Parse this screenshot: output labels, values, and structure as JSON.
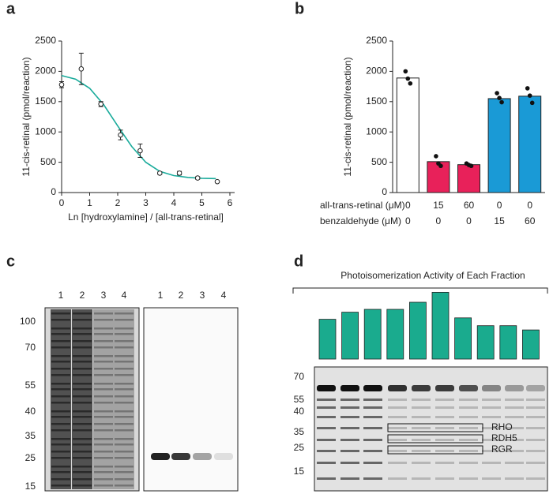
{
  "chart_data": [
    {
      "type": "scatter",
      "panel": "a",
      "y_label": "11-cis-retinal (pmol/reaction)",
      "x_label": "Ln [hydroxylamine] / [all-trans-retinal]",
      "x": [
        0,
        0.7,
        1.4,
        2.1,
        2.8,
        3.5,
        4.2,
        4.85,
        5.55
      ],
      "values": [
        1780,
        2040,
        1460,
        950,
        690,
        320,
        320,
        240,
        180
      ],
      "errors": [
        50,
        260,
        40,
        80,
        110,
        20,
        30,
        20,
        15
      ],
      "fit": {
        "color": "#1aab9b",
        "x": [
          0,
          0.5,
          1,
          1.5,
          2,
          2.5,
          3,
          3.5,
          4,
          4.5,
          5,
          5.5
        ],
        "values": [
          1930,
          1870,
          1720,
          1450,
          1100,
          760,
          500,
          350,
          280,
          250,
          235,
          230
        ]
      },
      "xlim": [
        0,
        6
      ],
      "xticks": [
        0,
        1,
        2,
        3,
        4,
        5,
        6
      ],
      "ylim": [
        0,
        2500
      ],
      "yticks": [
        0,
        500,
        1000,
        1500,
        2000,
        2500
      ]
    },
    {
      "type": "bar",
      "panel": "b",
      "y_label": "11-cis-retinal (pmol/reaction)",
      "rows": [
        {
          "label": "all-trans-retinal (μM)",
          "values": [
            0,
            15,
            60,
            0,
            0
          ]
        },
        {
          "label": "benzaldehyde (μM)",
          "values": [
            0,
            0,
            0,
            15,
            60
          ]
        }
      ],
      "values": [
        1890,
        510,
        460,
        1550,
        1590
      ],
      "colors": [
        "#ffffff",
        "#e8215a",
        "#e8215a",
        "#1a9ad6",
        "#1a9ad6"
      ],
      "points": [
        [
          2000,
          1880,
          1800
        ],
        [
          600,
          480,
          440
        ],
        [
          480,
          455,
          440
        ],
        [
          1640,
          1560,
          1490
        ],
        [
          1720,
          1600,
          1480
        ]
      ],
      "ylim": [
        0,
        2500
      ],
      "yticks": [
        0,
        500,
        1000,
        1500,
        2000,
        2500
      ]
    },
    {
      "type": "bar",
      "panel": "d",
      "title": "Photoisomerization Activity of Each Fraction",
      "values": [
        0.56,
        0.66,
        0.7,
        0.7,
        0.8,
        0.94,
        0.58,
        0.47,
        0.47,
        0.41
      ],
      "color": "#1aab8e",
      "ylim": [
        0,
        1
      ]
    }
  ],
  "gel_c": {
    "panel": "c",
    "lanes_left": [
      "1",
      "2",
      "3",
      "4"
    ],
    "lanes_right": [
      "1",
      "2",
      "3",
      "4"
    ],
    "markers": [
      100,
      70,
      55,
      40,
      35,
      25,
      15
    ]
  },
  "gel_d": {
    "markers": [
      70,
      55,
      40,
      35,
      25,
      15
    ],
    "boxes": [
      "RHO",
      "RDH5",
      "RGR"
    ]
  }
}
